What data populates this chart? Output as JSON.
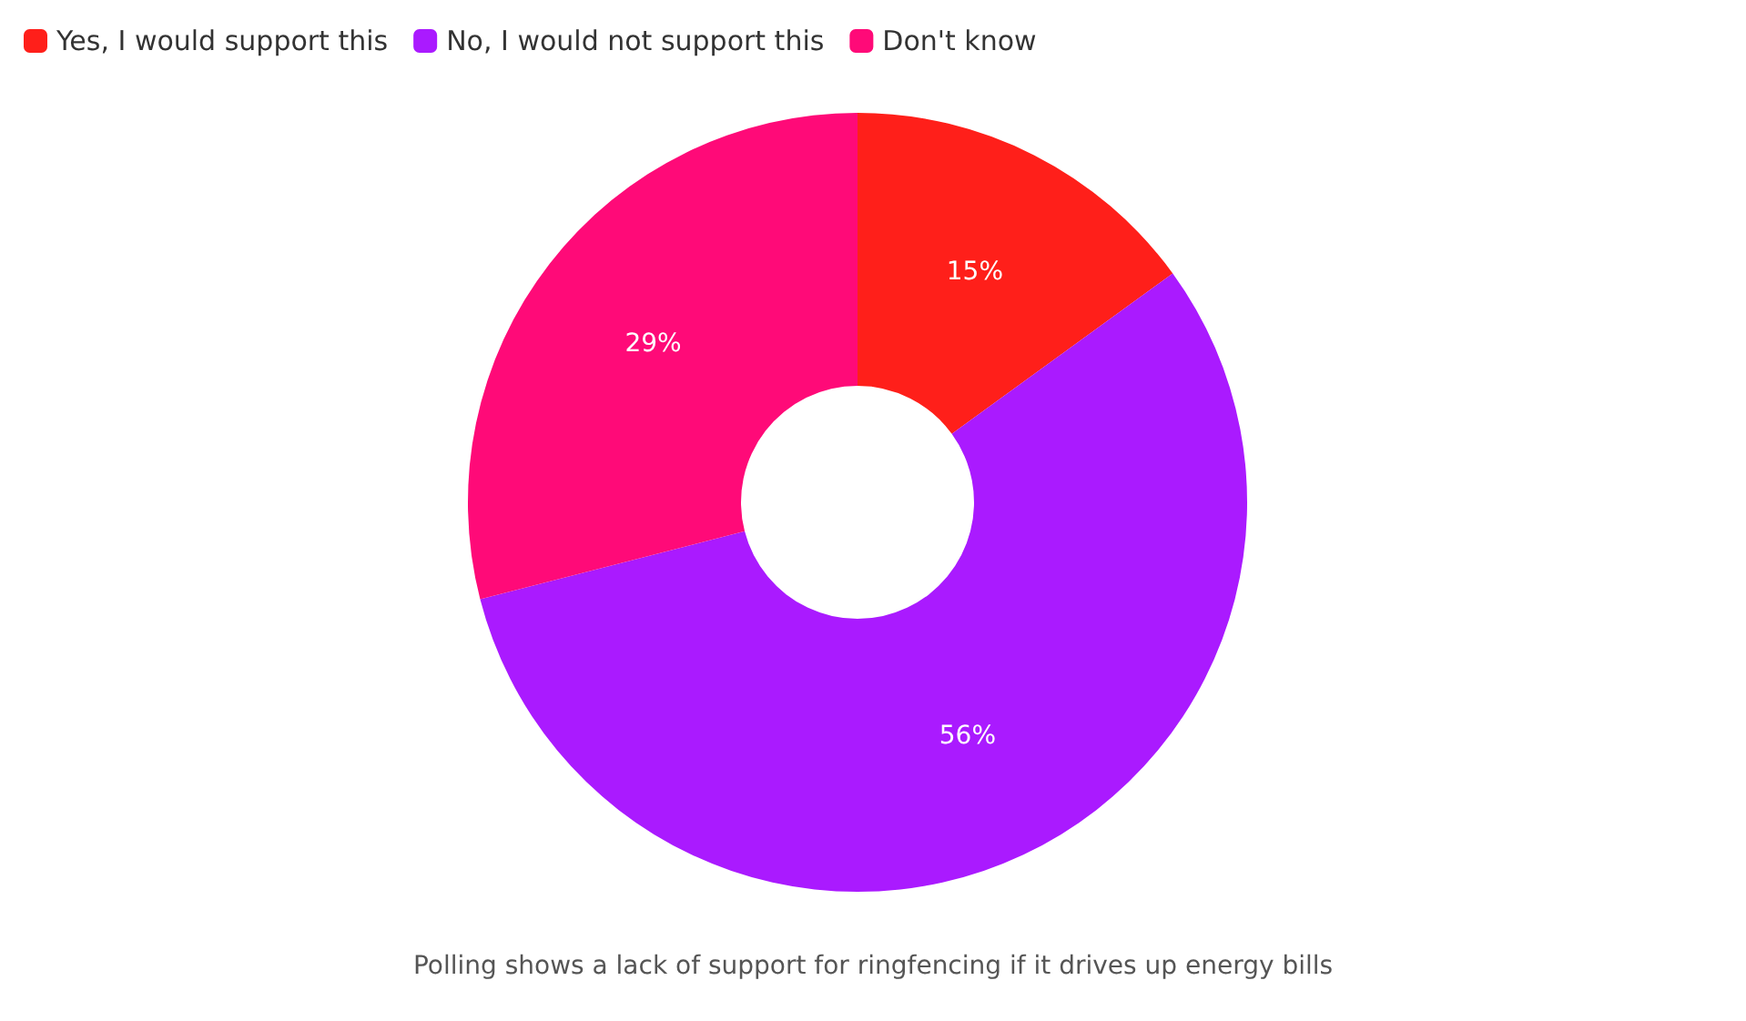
{
  "chart_data": {
    "type": "donut",
    "categories": [
      "Yes, I would support this",
      "No, I would not support this",
      "Don't know"
    ],
    "values": [
      15,
      56,
      29
    ],
    "colors": [
      "#ff1f1a",
      "#aa1aff",
      "#ff0a78"
    ],
    "value_labels": [
      "15%",
      "56%",
      "29%"
    ],
    "legend": "top left",
    "annotations": [
      "Polling shows a lack of support for ringfencing if it drives up energy bills"
    ]
  }
}
